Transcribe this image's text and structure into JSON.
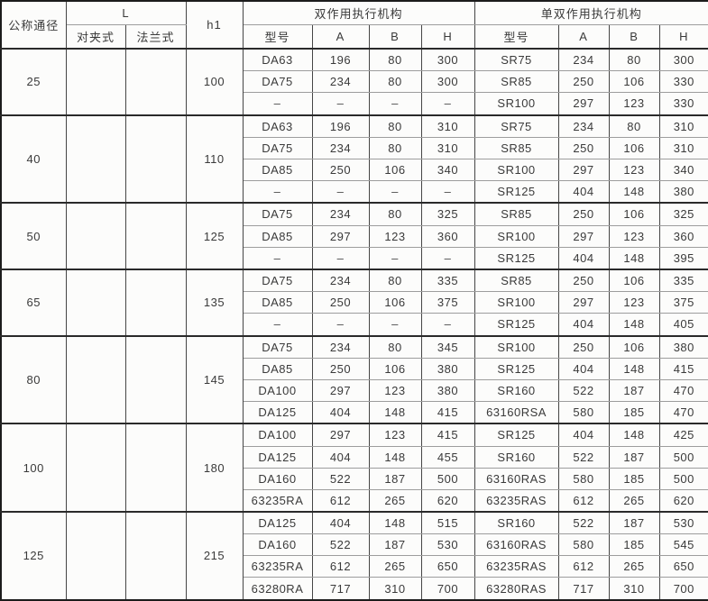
{
  "table": {
    "header": {
      "col_diameter": "公称通径",
      "col_L": "L",
      "col_wafer": "对夹式",
      "col_flange": "法兰式",
      "col_h1": "h1",
      "double_acting": "双作用执行机构",
      "single_double_acting": "单双作用执行机构",
      "sub_model": "型号",
      "sub_A": "A",
      "sub_B": "B",
      "sub_H": "H"
    },
    "groups": [
      {
        "diameter": "25",
        "wafer": "",
        "flange": "",
        "h1": "100",
        "rows": [
          {
            "d": [
              "DA63",
              "196",
              "80",
              "300"
            ],
            "s": [
              "SR75",
              "234",
              "80",
              "300"
            ]
          },
          {
            "d": [
              "DA75",
              "234",
              "80",
              "300"
            ],
            "s": [
              "SR85",
              "250",
              "106",
              "330"
            ]
          },
          {
            "d": [
              "–",
              "–",
              "–",
              "–"
            ],
            "s": [
              "SR100",
              "297",
              "123",
              "330"
            ]
          }
        ]
      },
      {
        "diameter": "40",
        "wafer": "",
        "flange": "",
        "h1": "110",
        "rows": [
          {
            "d": [
              "DA63",
              "196",
              "80",
              "310"
            ],
            "s": [
              "SR75",
              "234",
              "80",
              "310"
            ]
          },
          {
            "d": [
              "DA75",
              "234",
              "80",
              "310"
            ],
            "s": [
              "SR85",
              "250",
              "106",
              "310"
            ]
          },
          {
            "d": [
              "DA85",
              "250",
              "106",
              "340"
            ],
            "s": [
              "SR100",
              "297",
              "123",
              "340"
            ]
          },
          {
            "d": [
              "–",
              "–",
              "–",
              "–"
            ],
            "s": [
              "SR125",
              "404",
              "148",
              "380"
            ]
          }
        ]
      },
      {
        "diameter": "50",
        "wafer": "",
        "flange": "",
        "h1": "125",
        "rows": [
          {
            "d": [
              "DA75",
              "234",
              "80",
              "325"
            ],
            "s": [
              "SR85",
              "250",
              "106",
              "325"
            ]
          },
          {
            "d": [
              "DA85",
              "297",
              "123",
              "360"
            ],
            "s": [
              "SR100",
              "297",
              "123",
              "360"
            ]
          },
          {
            "d": [
              "–",
              "–",
              "–",
              "–"
            ],
            "s": [
              "SR125",
              "404",
              "148",
              "395"
            ]
          }
        ]
      },
      {
        "diameter": "65",
        "wafer": "",
        "flange": "",
        "h1": "135",
        "rows": [
          {
            "d": [
              "DA75",
              "234",
              "80",
              "335"
            ],
            "s": [
              "SR85",
              "250",
              "106",
              "335"
            ]
          },
          {
            "d": [
              "DA85",
              "250",
              "106",
              "375"
            ],
            "s": [
              "SR100",
              "297",
              "123",
              "375"
            ]
          },
          {
            "d": [
              "–",
              "–",
              "–",
              "–"
            ],
            "s": [
              "SR125",
              "404",
              "148",
              "405"
            ]
          }
        ]
      },
      {
        "diameter": "80",
        "wafer": "",
        "flange": "",
        "h1": "145",
        "rows": [
          {
            "d": [
              "DA75",
              "234",
              "80",
              "345"
            ],
            "s": [
              "SR100",
              "250",
              "106",
              "380"
            ]
          },
          {
            "d": [
              "DA85",
              "250",
              "106",
              "380"
            ],
            "s": [
              "SR125",
              "404",
              "148",
              "415"
            ]
          },
          {
            "d": [
              "DA100",
              "297",
              "123",
              "380"
            ],
            "s": [
              "SR160",
              "522",
              "187",
              "470"
            ]
          },
          {
            "d": [
              "DA125",
              "404",
              "148",
              "415"
            ],
            "s": [
              "63160RSA",
              "580",
              "185",
              "470"
            ]
          }
        ]
      },
      {
        "diameter": "100",
        "wafer": "",
        "flange": "",
        "h1": "180",
        "rows": [
          {
            "d": [
              "DA100",
              "297",
              "123",
              "415"
            ],
            "s": [
              "SR125",
              "404",
              "148",
              "425"
            ]
          },
          {
            "d": [
              "DA125",
              "404",
              "148",
              "455"
            ],
            "s": [
              "SR160",
              "522",
              "187",
              "500"
            ]
          },
          {
            "d": [
              "DA160",
              "522",
              "187",
              "500"
            ],
            "s": [
              "63160RAS",
              "580",
              "185",
              "500"
            ]
          },
          {
            "d": [
              "63235RA",
              "612",
              "265",
              "620"
            ],
            "s": [
              "63235RAS",
              "612",
              "265",
              "620"
            ]
          }
        ]
      },
      {
        "diameter": "125",
        "wafer": "",
        "flange": "",
        "h1": "215",
        "rows": [
          {
            "d": [
              "DA125",
              "404",
              "148",
              "515"
            ],
            "s": [
              "SR160",
              "522",
              "187",
              "530"
            ]
          },
          {
            "d": [
              "DA160",
              "522",
              "187",
              "530"
            ],
            "s": [
              "63160RAS",
              "580",
              "185",
              "545"
            ]
          },
          {
            "d": [
              "63235RA",
              "612",
              "265",
              "650"
            ],
            "s": [
              "63235RAS",
              "612",
              "265",
              "650"
            ]
          },
          {
            "d": [
              "63280RA",
              "717",
              "310",
              "700"
            ],
            "s": [
              "63280RAS",
              "717",
              "310",
              "700"
            ]
          }
        ]
      }
    ]
  },
  "colors": {
    "background": "#fcfcfb",
    "text": "#3a3a3a",
    "border_heavy": "#1c1c1c",
    "border_dark": "#3c3c3c",
    "border_light": "#9d9d9d"
  }
}
